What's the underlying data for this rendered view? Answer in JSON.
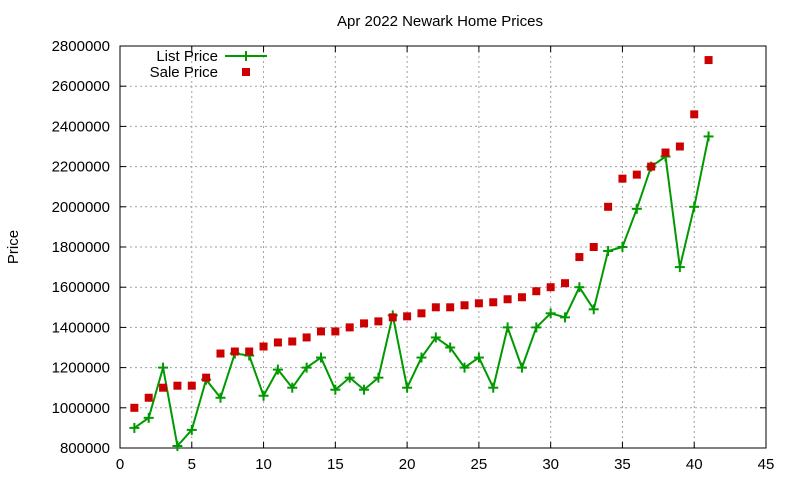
{
  "chart_data": {
    "type": "scatter",
    "title": "Apr 2022 Newark Home Prices",
    "xlabel": "",
    "ylabel": "Price",
    "xlim": [
      0,
      45
    ],
    "ylim": [
      800000,
      2800000
    ],
    "x_ticks": [
      0,
      5,
      10,
      15,
      20,
      25,
      30,
      35,
      40,
      45
    ],
    "y_ticks": [
      800000,
      1000000,
      1200000,
      1400000,
      1600000,
      1800000,
      2000000,
      2200000,
      2400000,
      2600000,
      2800000
    ],
    "grid": true,
    "legend_position": "top-left",
    "x": [
      1,
      2,
      3,
      4,
      5,
      6,
      7,
      8,
      9,
      10,
      11,
      12,
      13,
      14,
      15,
      16,
      17,
      18,
      19,
      20,
      21,
      22,
      23,
      24,
      25,
      26,
      27,
      28,
      29,
      30,
      31,
      32,
      33,
      34,
      35,
      36,
      37,
      38,
      39,
      40,
      41
    ],
    "series": [
      {
        "name": "List Price",
        "style": "linespoints",
        "color": "#009900",
        "marker": "plus",
        "values": [
          900000,
          950000,
          1200000,
          810000,
          890000,
          1140000,
          1050000,
          1270000,
          1260000,
          1060000,
          1190000,
          1100000,
          1200000,
          1250000,
          1090000,
          1150000,
          1090000,
          1150000,
          1460000,
          1100000,
          1250000,
          1350000,
          1300000,
          1200000,
          1250000,
          1100000,
          1400000,
          1200000,
          1400000,
          1470000,
          1450000,
          1600000,
          1490000,
          1780000,
          1800000,
          1990000,
          2200000,
          2250000,
          1700000,
          2000000,
          2350000
        ]
      },
      {
        "name": "Sale Price",
        "style": "points",
        "color": "#cc0000",
        "marker": "square",
        "values": [
          1000000,
          1050000,
          1100000,
          1110000,
          1110000,
          1150000,
          1270000,
          1280000,
          1280000,
          1305000,
          1325000,
          1330000,
          1350000,
          1380000,
          1380000,
          1400000,
          1420000,
          1430000,
          1450000,
          1455000,
          1470000,
          1500000,
          1500000,
          1510000,
          1520000,
          1525000,
          1540000,
          1550000,
          1580000,
          1600000,
          1620000,
          1750000,
          1800000,
          2000000,
          2140000,
          2160000,
          2200000,
          2270000,
          2300000,
          2460000,
          2730000
        ]
      }
    ]
  }
}
